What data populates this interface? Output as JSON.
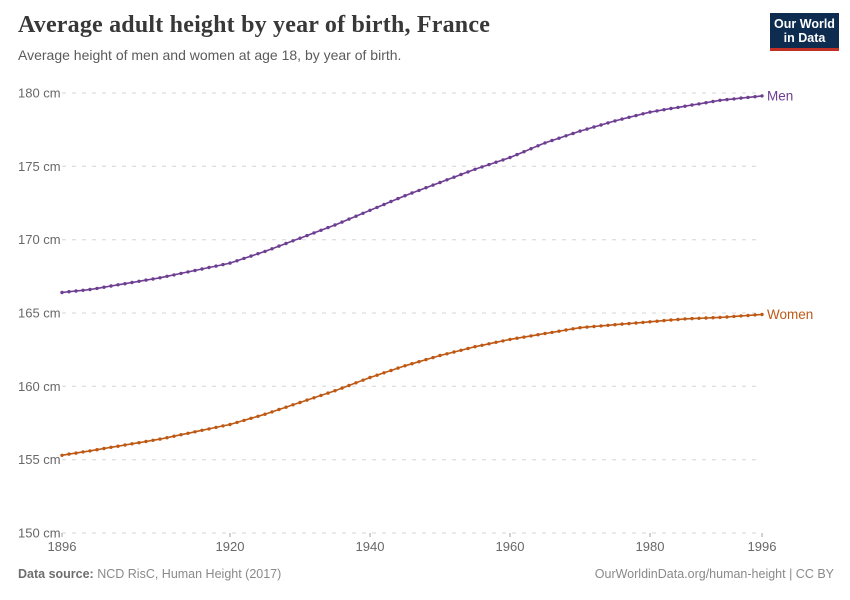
{
  "header": {
    "title": "Average adult height by year of birth, France",
    "subtitle": "Average height of men and women at age 18, by year of birth.",
    "logo": {
      "line1": "Our World",
      "line2": "in Data",
      "bg_color": "#0d2c50",
      "accent_color": "#c22f25"
    }
  },
  "footer": {
    "source_label": "Data source:",
    "source_text": " NCD RisC, Human Height (2017)",
    "link_text": "OurWorldinData.org/human-height | CC BY"
  },
  "colors": {
    "men": "#6d3e91",
    "women": "#be5915",
    "gridline": "#d5d5d5",
    "axis_text": "#686868"
  },
  "chart_data": {
    "type": "line",
    "title": "Average adult height by year of birth, France",
    "subtitle": "Average height of men and women at age 18, by year of birth.",
    "xlabel": "",
    "ylabel": "cm",
    "ylim": [
      150,
      180
    ],
    "yticks": [
      150,
      155,
      160,
      165,
      170,
      175,
      180
    ],
    "ytick_suffix": " cm",
    "xticks": [
      1896,
      1920,
      1940,
      1960,
      1980,
      1996
    ],
    "grid": "horizontal-dashed",
    "legend_position": "line-end-labels",
    "marker": "dot-every-year",
    "x": [
      1896,
      1897,
      1898,
      1899,
      1900,
      1901,
      1902,
      1903,
      1904,
      1905,
      1906,
      1907,
      1908,
      1909,
      1910,
      1911,
      1912,
      1913,
      1914,
      1915,
      1916,
      1917,
      1918,
      1919,
      1920,
      1921,
      1922,
      1923,
      1924,
      1925,
      1926,
      1927,
      1928,
      1929,
      1930,
      1931,
      1932,
      1933,
      1934,
      1935,
      1936,
      1937,
      1938,
      1939,
      1940,
      1941,
      1942,
      1943,
      1944,
      1945,
      1946,
      1947,
      1948,
      1949,
      1950,
      1951,
      1952,
      1953,
      1954,
      1955,
      1956,
      1957,
      1958,
      1959,
      1960,
      1961,
      1962,
      1963,
      1964,
      1965,
      1966,
      1967,
      1968,
      1969,
      1970,
      1971,
      1972,
      1973,
      1974,
      1975,
      1976,
      1977,
      1978,
      1979,
      1980,
      1981,
      1982,
      1983,
      1984,
      1985,
      1986,
      1987,
      1988,
      1989,
      1990,
      1991,
      1992,
      1993,
      1994,
      1995,
      1996
    ],
    "series": [
      {
        "name": "Men",
        "color": "#6d3e91",
        "values": [
          166.4,
          166.45,
          166.5,
          166.55,
          166.6,
          166.68,
          166.76,
          166.84,
          166.92,
          167.0,
          167.08,
          167.16,
          167.24,
          167.32,
          167.4,
          167.5,
          167.6,
          167.7,
          167.8,
          167.9,
          168.0,
          168.1,
          168.2,
          168.3,
          168.4,
          168.56,
          168.72,
          168.88,
          169.04,
          169.2,
          169.38,
          169.56,
          169.74,
          169.92,
          170.1,
          170.28,
          170.46,
          170.64,
          170.82,
          171.0,
          171.2,
          171.4,
          171.6,
          171.8,
          172.0,
          172.2,
          172.4,
          172.6,
          172.8,
          173.0,
          173.18,
          173.36,
          173.54,
          173.72,
          173.9,
          174.08,
          174.26,
          174.44,
          174.62,
          174.8,
          174.96,
          175.12,
          175.28,
          175.44,
          175.6,
          175.8,
          176.0,
          176.2,
          176.4,
          176.6,
          176.76,
          176.92,
          177.08,
          177.24,
          177.4,
          177.54,
          177.68,
          177.82,
          177.96,
          178.1,
          178.22,
          178.34,
          178.46,
          178.58,
          178.7,
          178.78,
          178.86,
          178.94,
          179.02,
          179.1,
          179.18,
          179.26,
          179.34,
          179.42,
          179.5,
          179.55,
          179.6,
          179.65,
          179.7,
          179.75,
          179.8
        ]
      },
      {
        "name": "Women",
        "color": "#be5915",
        "values": [
          155.3,
          155.38,
          155.45,
          155.53,
          155.6,
          155.68,
          155.76,
          155.84,
          155.92,
          156.0,
          156.08,
          156.16,
          156.24,
          156.32,
          156.4,
          156.5,
          156.6,
          156.7,
          156.8,
          156.9,
          157.0,
          157.1,
          157.2,
          157.3,
          157.4,
          157.54,
          157.68,
          157.82,
          157.96,
          158.1,
          158.26,
          158.42,
          158.58,
          158.74,
          158.9,
          159.06,
          159.22,
          159.38,
          159.54,
          159.7,
          159.88,
          160.06,
          160.24,
          160.42,
          160.6,
          160.76,
          160.92,
          161.08,
          161.24,
          161.4,
          161.54,
          161.68,
          161.82,
          161.96,
          162.1,
          162.22,
          162.34,
          162.46,
          162.58,
          162.7,
          162.8,
          162.9,
          163.0,
          163.1,
          163.2,
          163.28,
          163.36,
          163.44,
          163.52,
          163.6,
          163.68,
          163.76,
          163.84,
          163.92,
          164.0,
          164.04,
          164.08,
          164.12,
          164.16,
          164.2,
          164.24,
          164.28,
          164.32,
          164.36,
          164.4,
          164.44,
          164.48,
          164.52,
          164.56,
          164.6,
          164.62,
          164.64,
          164.66,
          164.68,
          164.7,
          164.73,
          164.77,
          164.8,
          164.83,
          164.87,
          164.9
        ]
      }
    ]
  }
}
